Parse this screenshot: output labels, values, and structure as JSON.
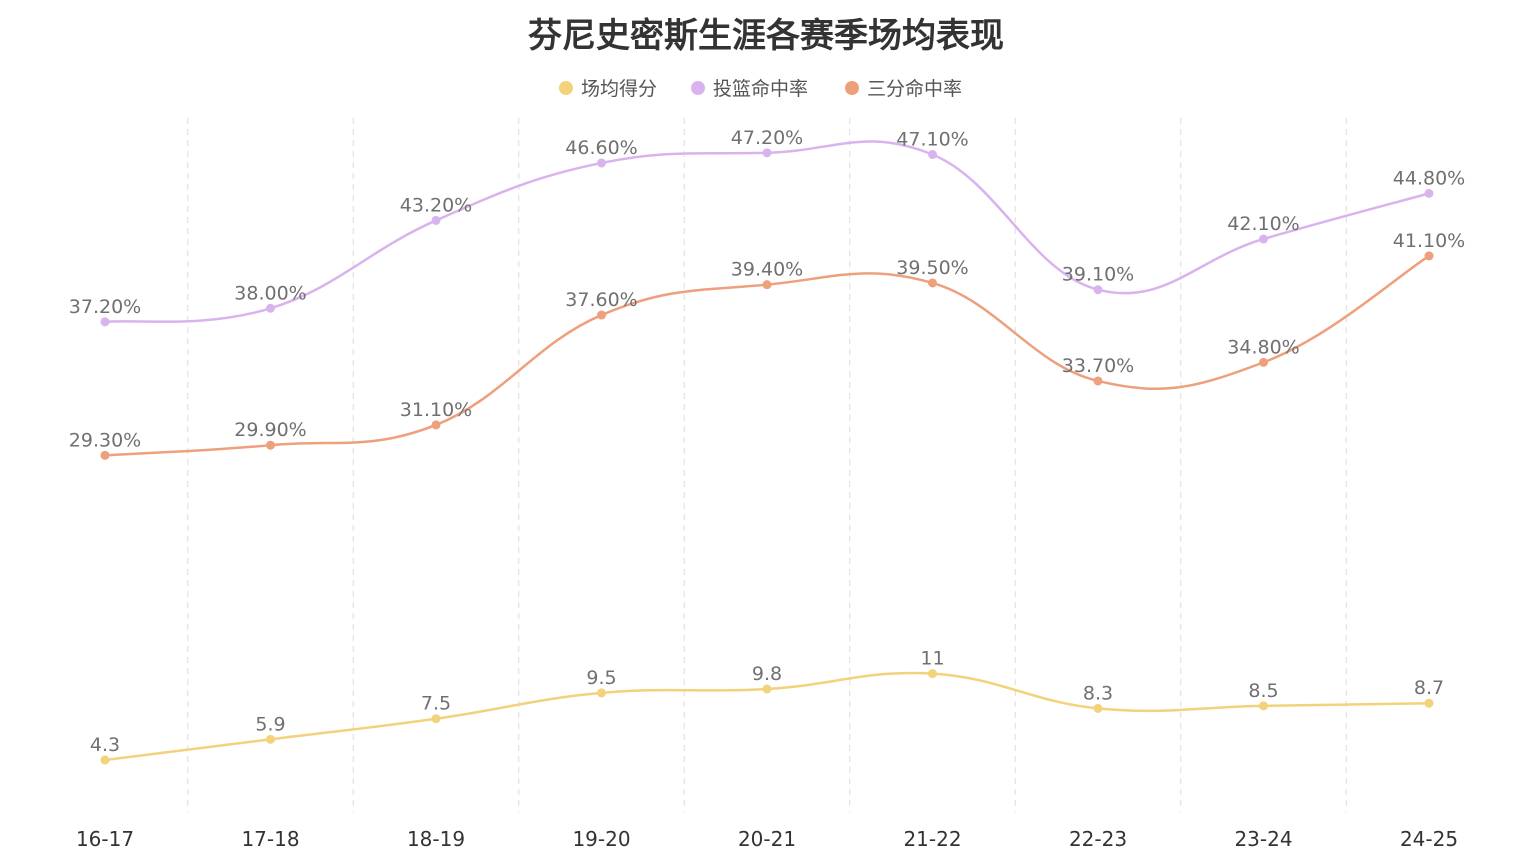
{
  "chart_data": {
    "type": "line",
    "title": "芬尼史密斯生涯各赛季场均表现",
    "categories": [
      "16-17",
      "17-18",
      "18-19",
      "19-20",
      "20-21",
      "21-22",
      "22-23",
      "23-24",
      "24-25"
    ],
    "legend_position": "top-center",
    "grid": "vertical-dashed",
    "series": [
      {
        "name": "场均得分",
        "color": "#f2d27a",
        "axis": "points",
        "values": [
          4.3,
          5.9,
          7.5,
          9.5,
          9.8,
          11,
          8.3,
          8.5,
          8.7
        ],
        "labels": [
          "4.3",
          "5.9",
          "7.5",
          "9.5",
          "9.8",
          "11",
          "8.3",
          "8.5",
          "8.7"
        ]
      },
      {
        "name": "投篮命中率",
        "color": "#d9b3ee",
        "axis": "percent",
        "values": [
          37.2,
          38.0,
          43.2,
          46.6,
          47.2,
          47.1,
          39.1,
          42.1,
          44.8
        ],
        "labels": [
          "37.20%",
          "38.00%",
          "43.20%",
          "46.60%",
          "47.20%",
          "47.10%",
          "39.10%",
          "42.10%",
          "44.80%"
        ]
      },
      {
        "name": "三分命中率",
        "color": "#ee9f7c",
        "axis": "percent",
        "values": [
          29.3,
          29.9,
          31.1,
          37.6,
          39.4,
          39.5,
          33.7,
          34.8,
          41.1
        ],
        "labels": [
          "29.30%",
          "29.90%",
          "31.10%",
          "37.60%",
          "39.40%",
          "39.50%",
          "33.70%",
          "34.80%",
          "41.10%"
        ]
      }
    ]
  }
}
